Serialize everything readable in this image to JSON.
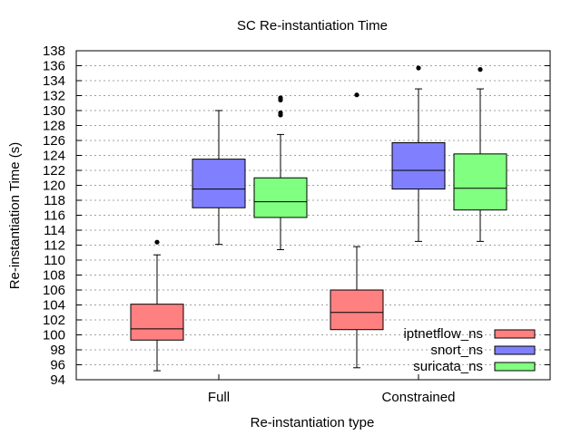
{
  "chart_data": {
    "type": "box",
    "title": "SC Re-instantiation Time",
    "xlabel": "Re-instantiation type",
    "ylabel": "Re-instantiation Time (s)",
    "ylim": [
      94,
      138
    ],
    "yticks": [
      94,
      96,
      98,
      100,
      102,
      104,
      106,
      108,
      110,
      112,
      114,
      116,
      118,
      120,
      122,
      124,
      126,
      128,
      130,
      132,
      134,
      136,
      138
    ],
    "grid": true,
    "legend_position": "bottom-right",
    "categories": [
      "Full",
      "Constrained"
    ],
    "series": [
      {
        "name": "iptnetflow_ns",
        "color": "#ff8080",
        "boxes": [
          {
            "min": 95.2,
            "q1": 99.3,
            "median": 100.8,
            "q3": 104.1,
            "max": 110.7,
            "outliers": [
              112.4
            ]
          },
          {
            "min": 95.6,
            "q1": 100.7,
            "median": 103.0,
            "q3": 106.0,
            "max": 111.8,
            "outliers": [
              132.1
            ]
          }
        ]
      },
      {
        "name": "snort_ns",
        "color": "#8080ff",
        "boxes": [
          {
            "min": 112.1,
            "q1": 117.0,
            "median": 119.5,
            "q3": 123.5,
            "max": 130.0,
            "outliers": []
          },
          {
            "min": 112.5,
            "q1": 119.5,
            "median": 122.0,
            "q3": 125.7,
            "max": 132.9,
            "outliers": [
              135.7
            ]
          }
        ]
      },
      {
        "name": "suricata_ns",
        "color": "#80ff80",
        "boxes": [
          {
            "min": 111.4,
            "q1": 115.7,
            "median": 117.8,
            "q3": 121.0,
            "max": 126.8,
            "outliers": [
              129.4,
              129.7,
              131.4,
              131.7
            ]
          },
          {
            "min": 112.5,
            "q1": 116.7,
            "median": 119.6,
            "q3": 124.2,
            "max": 132.9,
            "outliers": [
              135.5
            ]
          }
        ]
      }
    ]
  }
}
